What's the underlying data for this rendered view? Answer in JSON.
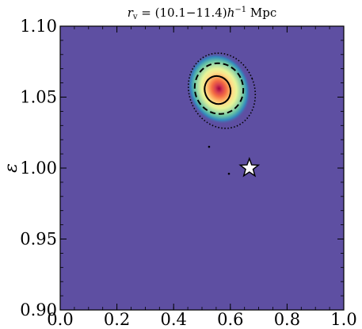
{
  "chart_data": {
    "type": "heatmap",
    "title": {
      "var": "r",
      "sub": "v",
      "eq": " = (10.1−11.4)",
      "h": "h",
      "exp": "−1",
      "unit": " Mpc"
    },
    "xlabel": "",
    "ylabel": "ε",
    "xlim": [
      0.0,
      1.0
    ],
    "ylim": [
      0.9,
      1.1
    ],
    "xticks": [
      "0.0",
      "0.2",
      "0.4",
      "0.6",
      "0.8",
      "1.0"
    ],
    "yticks": [
      "0.90",
      "0.95",
      "1.00",
      "1.05",
      "1.10"
    ],
    "background_color": "#5e4fa2",
    "colormap": [
      "#5e4fa2",
      "#3288bd",
      "#66c2a5",
      "#abdda4",
      "#e6f598",
      "#fee08b",
      "#fdae61",
      "#f46d43",
      "#d53e4f",
      "#9e0142"
    ],
    "density_peak": {
      "x": 0.56,
      "y": 1.056
    },
    "contours": [
      {
        "level": "inner",
        "style": "solid",
        "center": [
          0.555,
          1.055
        ],
        "half_width": 0.045,
        "half_height": 0.01
      },
      {
        "level": "middle",
        "style": "dashed",
        "center": [
          0.56,
          1.056
        ],
        "half_width": 0.085,
        "half_height": 0.018
      },
      {
        "level": "outer",
        "style": "dotted",
        "center": [
          0.57,
          1.0545
        ],
        "half_width": 0.115,
        "half_height": 0.027
      }
    ],
    "outliers": [
      {
        "x": 0.525,
        "y": 1.015
      },
      {
        "x": 0.595,
        "y": 0.996
      }
    ],
    "reference_point": {
      "x": 0.667,
      "y": 1.0,
      "marker": "star"
    },
    "grid": false,
    "legend": "none"
  }
}
